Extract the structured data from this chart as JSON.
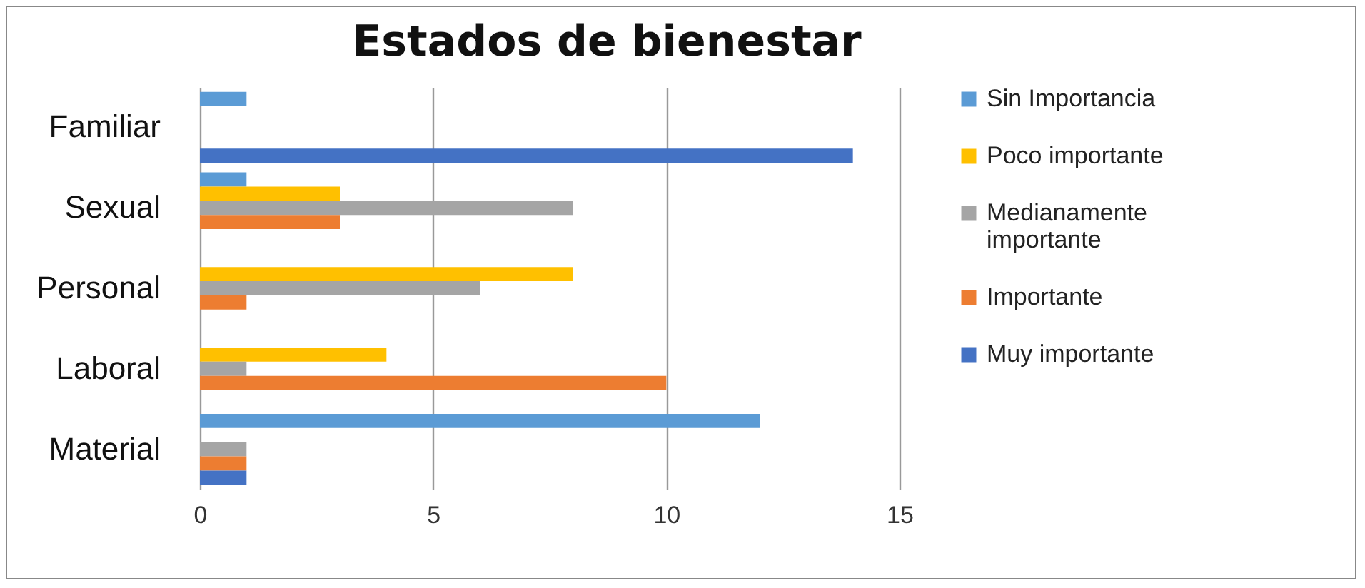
{
  "chart_data": {
    "type": "bar",
    "title": "Estados de bienestar",
    "orientation": "horizontal",
    "categories": [
      "Familiar",
      "Sexual",
      "Personal",
      "Laboral",
      "Material"
    ],
    "series": [
      {
        "name": "Sin Importancia",
        "color": "#5b9bd5",
        "values": [
          1,
          1,
          0,
          0,
          12
        ]
      },
      {
        "name": "Poco importante",
        "color": "#ffc000",
        "values": [
          0,
          3,
          8,
          4,
          0
        ]
      },
      {
        "name": "Medianamente importante",
        "color": "#a5a5a5",
        "values": [
          0,
          8,
          6,
          1,
          1
        ]
      },
      {
        "name": "Importante",
        "color": "#ed7d31",
        "values": [
          0,
          3,
          1,
          10,
          1
        ]
      },
      {
        "name": "Muy importante",
        "color": "#4472c4",
        "values": [
          14,
          0,
          0,
          0,
          1
        ]
      }
    ],
    "xlim": [
      0,
      15
    ],
    "xticks": [
      0,
      5,
      10,
      15
    ],
    "grid": "x",
    "legend": "right"
  }
}
